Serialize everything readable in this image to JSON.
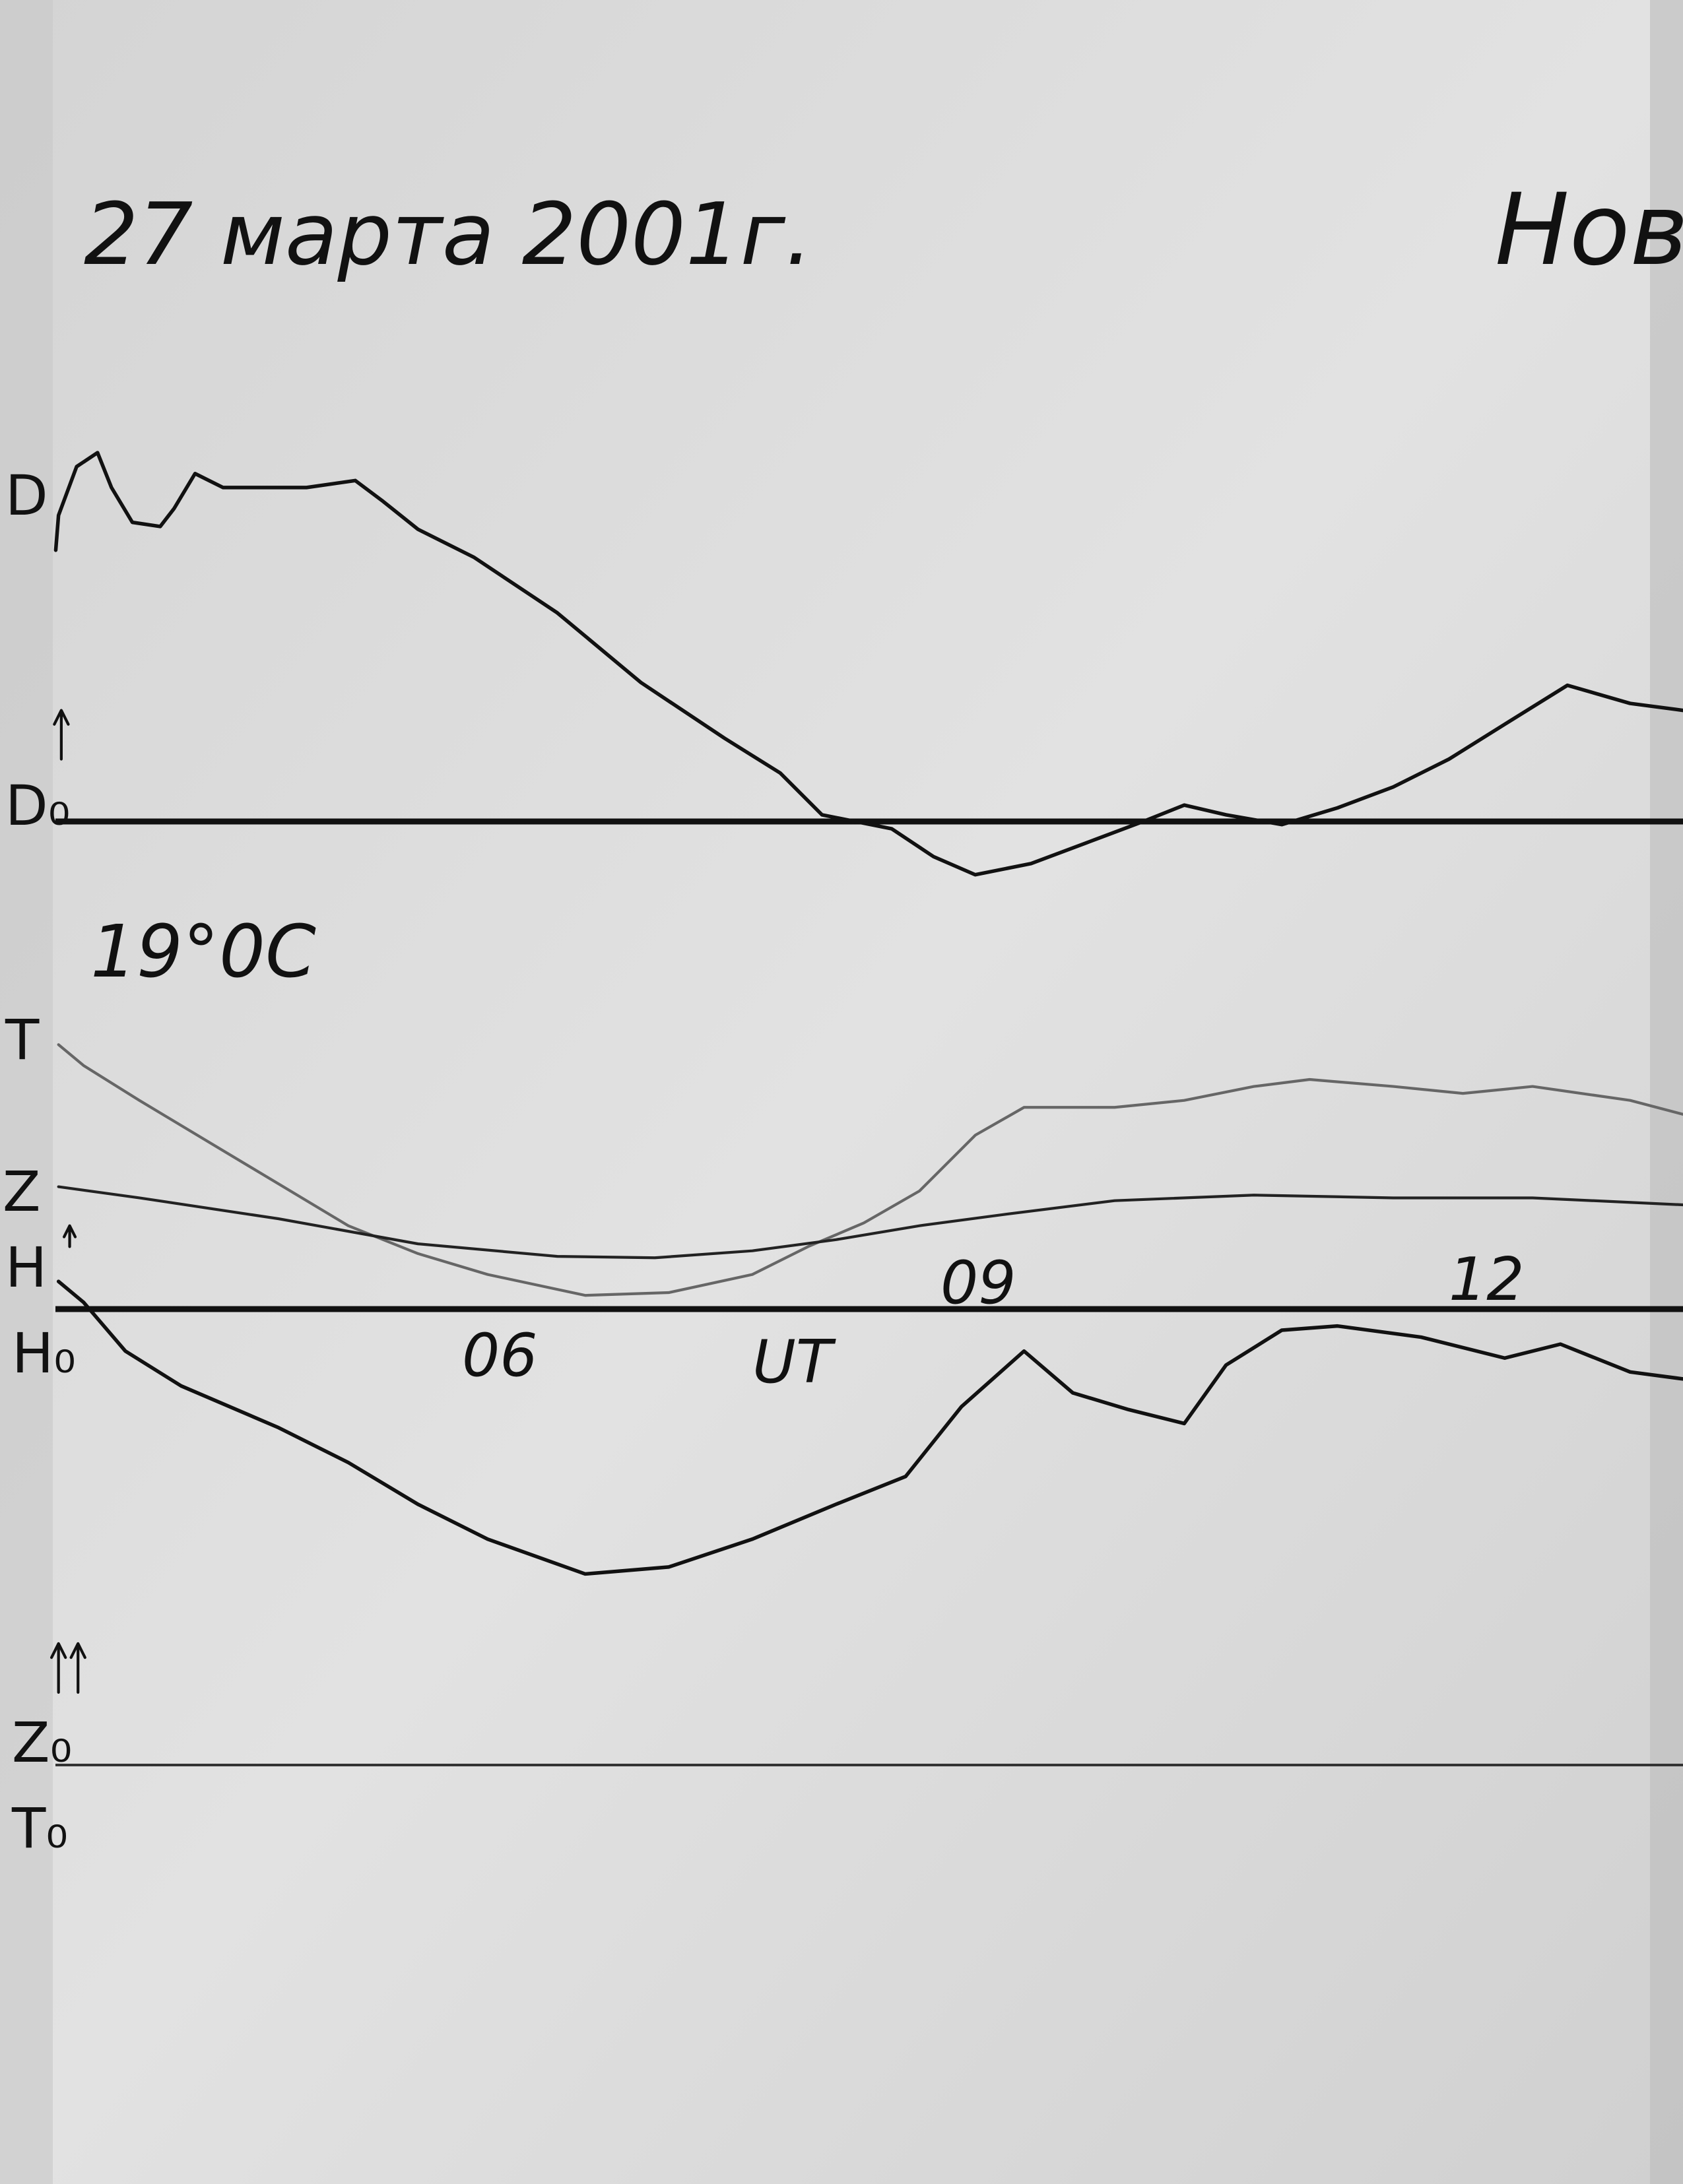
{
  "header": {
    "date": "27 марта 2001г.",
    "station": "Нов"
  },
  "trace_labels": {
    "d": "D",
    "d0": "D₀",
    "t": "T",
    "z": "Z",
    "h": "H",
    "h0": "H₀",
    "z0": "Z₀",
    "t0": "T₀"
  },
  "temperature": "19°0C",
  "time_axis": {
    "label": "UT",
    "ticks": [
      "06",
      "09",
      "12"
    ]
  }
}
